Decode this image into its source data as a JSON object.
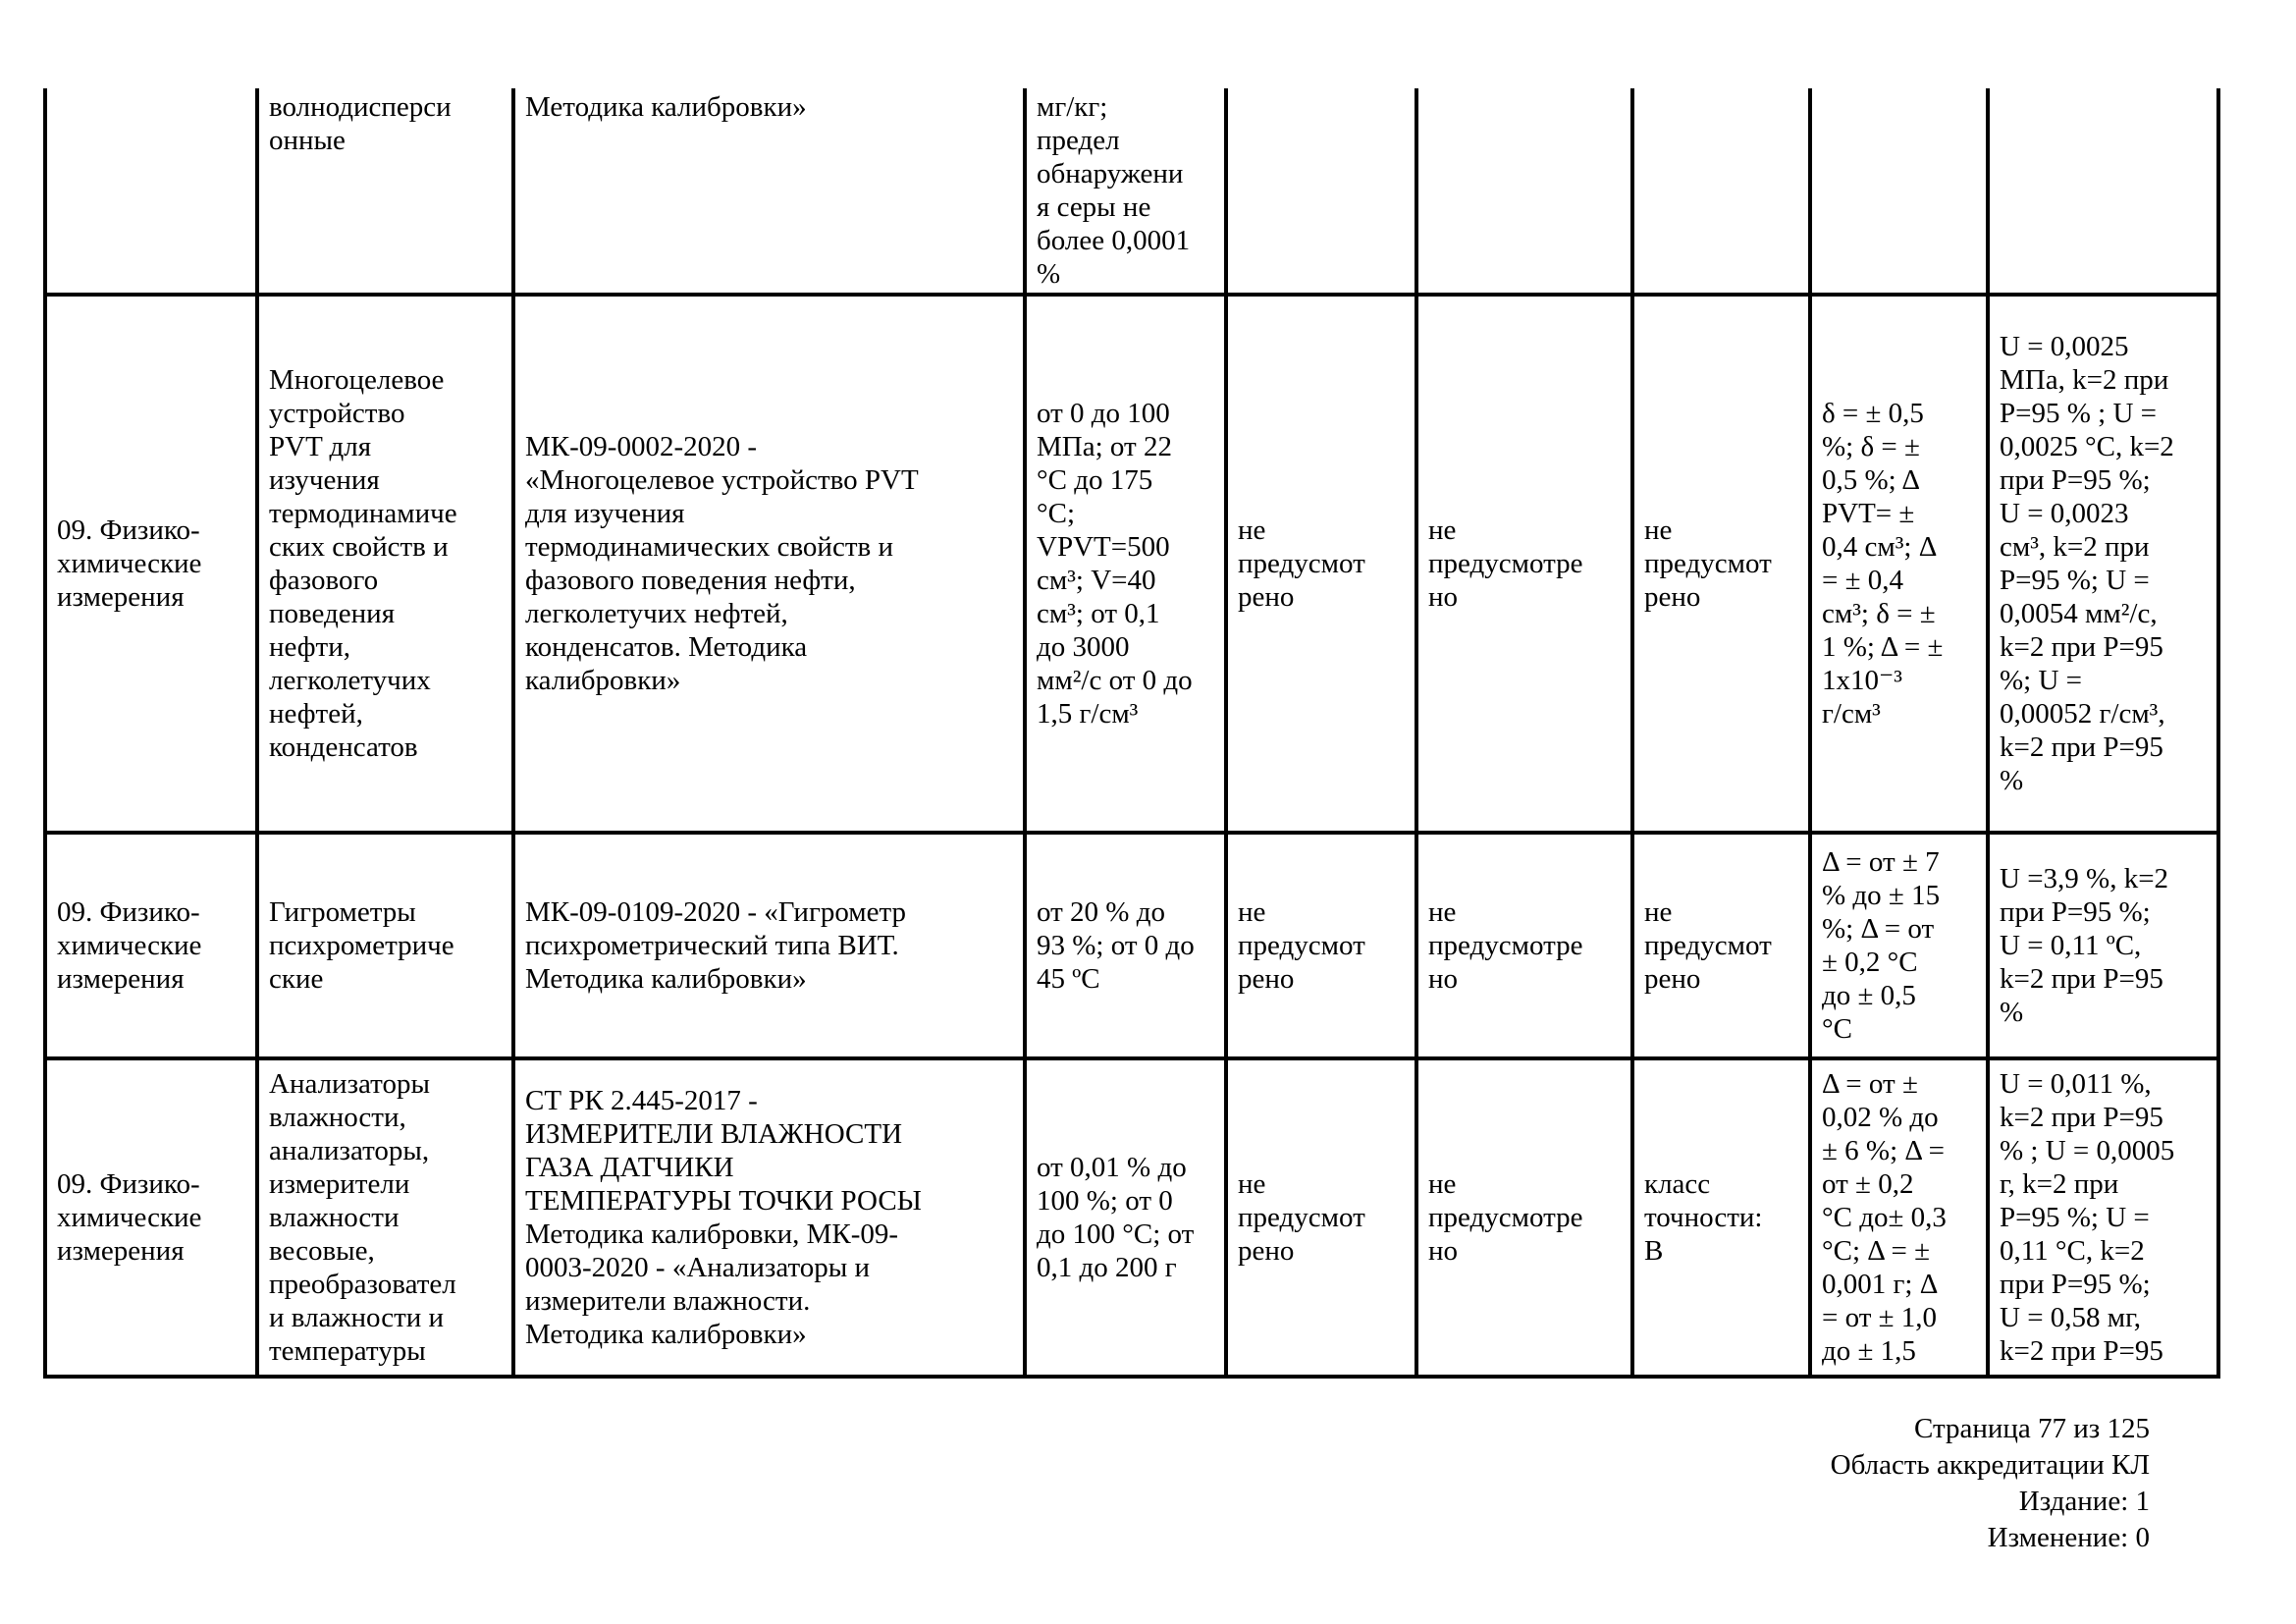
{
  "table": {
    "rows": [
      {
        "cells": [
          "",
          "волнодисперси\nонные",
          "Методика калибровки»",
          "мг/кг;\nпредел\nобнаружени\nя серы не\nболее 0,0001\n%",
          "",
          "",
          "",
          "",
          ""
        ]
      },
      {
        "cells": [
          "09. Физико-\nхимические\nизмерения",
          "Многоцелевое\nустройство\nPVT для\nизучения\nтермодинамиче\nских свойств и\nфазового\nповедения\nнефти,\nлегколетучих\nнефтей,\nконденсатов",
          "МК-09-0002-2020 -\n«Многоцелевое устройство PVT\nдля изучения\nтермодинамических свойств и\nфазового поведения нефти,\nлегколетучих нефтей,\nконденсатов. Методика\nкалибровки»",
          "от 0 до 100\nМПа; от 22\n°C до 175\n°C;\nVPVT=500\nсм³; V=40\nсм³; от 0,1\nдо 3000\nмм²/с от 0 до\n1,5 г/см³",
          "не\nпредусмот\nрено",
          "не\nпредусмотре\nно",
          "не\nпредусмот\nрено",
          "δ = ± 0,5\n%; δ = ±\n0,5 %; Δ\nPVT= ±\n0,4 см³; Δ\n= ± 0,4\nсм³; δ = ±\n1 %; Δ = ±\n1x10⁻³\nг/см³",
          "U = 0,0025\nМПа, k=2 при\nР=95 % ; U =\n0,0025 °C, k=2\nпри Р=95 %;\nU = 0,0023\nсм³, k=2 при\nР=95 %; U =\n0,0054 мм²/с,\nk=2 при Р=95\n%; U =\n0,00052 г/см³,\nk=2 при Р=95\n%"
        ]
      },
      {
        "cells": [
          "09. Физико-\nхимические\nизмерения",
          "Гигрометры\nпсихрометриче\nские",
          "МК-09-0109-2020 - «Гигрометр\nпсихрометрический типа ВИТ.\nМетодика калибровки»",
          "от 20 % до\n93 %; от 0 до\n45 ºC",
          "не\nпредусмот\nрено",
          "не\nпредусмотре\nно",
          "не\nпредусмот\nрено",
          "Δ = от ± 7\n% до ± 15\n%; Δ = от\n± 0,2 °C\nдо ± 0,5\n°C",
          "U =3,9 %, k=2\nпри Р=95 %;\nU = 0,11 ºC,\nk=2 при Р=95\n%"
        ]
      },
      {
        "cells": [
          "09. Физико-\nхимические\nизмерения",
          "Анализаторы\nвлажности,\nанализаторы,\nизмерители\nвлажности\nвесовые,\nпреобразовател\nи влажности и\nтемпературы",
          "СТ РК 2.445-2017 -\nИЗМЕРИТЕЛИ ВЛАЖНОСТИ\nГАЗА ДАТЧИКИ\nТЕМПЕРАТУРЫ ТОЧКИ РОСЫ\nМетодика калибровки, МК-09-\n0003-2020 - «Анализаторы и\nизмерители влажности.\nМетодика калибровки»",
          "от 0,01 % до\n100 %; от 0\nдо 100 °C; от\n0,1 до 200 г",
          "не\nпредусмот\nрено",
          "не\nпредусмотре\nно",
          "класс\nточности:\nВ",
          "Δ = от ±\n0,02 % до\n± 6 %; Δ =\nот ± 0,2\n°C до± 0,3\n°C; Δ = ±\n0,001 г; Δ\n= от ± 1,0\nдо ± 1,5",
          "U = 0,011 %,\nk=2 при Р=95\n% ; U = 0,0005\nг, k=2 при\nР=95 %; U =\n0,11 °C, k=2\nпри Р=95 %;\nU = 0,58 мг,\nk=2 при Р=95"
        ]
      }
    ]
  },
  "footer": {
    "page": "Страница 77 из 125",
    "scope": "Область аккредитации КЛ",
    "edition": "Издание: 1",
    "change": "Изменение: 0"
  }
}
